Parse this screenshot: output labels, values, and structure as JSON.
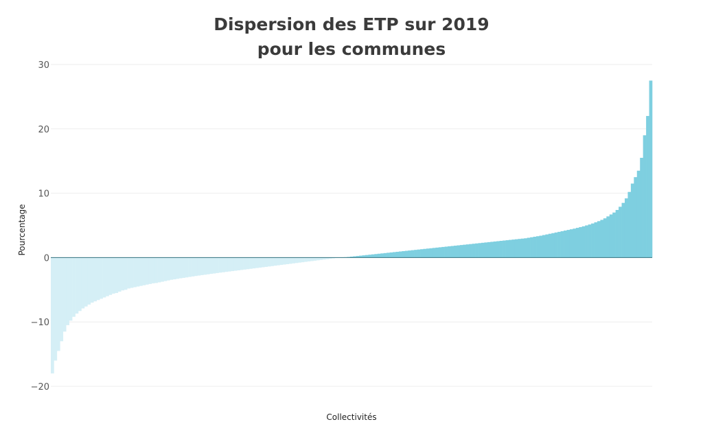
{
  "chart_data": {
    "type": "bar",
    "title_line1": "Dispersion des ETP sur 2019",
    "title_line2": "pour les communes",
    "xlabel": "Collectivités",
    "ylabel": "Pourcentage",
    "ylim": [
      -20,
      30
    ],
    "yticks": [
      {
        "value": 30,
        "label": "30"
      },
      {
        "value": 20,
        "label": "20"
      },
      {
        "value": 10,
        "label": "10"
      },
      {
        "value": 0,
        "label": "0"
      },
      {
        "value": -10,
        "label": "−10"
      },
      {
        "value": -20,
        "label": "−20"
      }
    ],
    "grid": true,
    "legend": "none",
    "colors": {
      "positive": "#7ecfe0",
      "negative": "#d5eff6",
      "zero_line": "#2f6f7c",
      "grid": "#eeeeee"
    },
    "series": [
      {
        "values": [
          -18.0,
          -16.0,
          -14.5,
          -13.0,
          -11.5,
          -10.5,
          -9.8,
          -9.2,
          -8.7,
          -8.3,
          -7.9,
          -7.6,
          -7.3,
          -7.0,
          -6.8,
          -6.6,
          -6.4,
          -6.2,
          -6.0,
          -5.8,
          -5.6,
          -5.5,
          -5.3,
          -5.1,
          -5.0,
          -4.8,
          -4.7,
          -4.6,
          -4.5,
          -4.4,
          -4.3,
          -4.2,
          -4.1,
          -4.0,
          -3.95,
          -3.85,
          -3.75,
          -3.65,
          -3.55,
          -3.45,
          -3.38,
          -3.3,
          -3.22,
          -3.15,
          -3.08,
          -3.0,
          -2.93,
          -2.86,
          -2.79,
          -2.72,
          -2.66,
          -2.6,
          -2.53,
          -2.47,
          -2.4,
          -2.34,
          -2.28,
          -2.22,
          -2.16,
          -2.1,
          -2.04,
          -1.98,
          -1.92,
          -1.86,
          -1.8,
          -1.74,
          -1.68,
          -1.62,
          -1.56,
          -1.5,
          -1.44,
          -1.38,
          -1.32,
          -1.26,
          -1.2,
          -1.14,
          -1.08,
          -1.02,
          -0.96,
          -0.9,
          -0.84,
          -0.78,
          -0.72,
          -0.66,
          -0.6,
          -0.54,
          -0.48,
          -0.42,
          -0.36,
          -0.3,
          -0.24,
          -0.18,
          -0.12,
          -0.06,
          -0.02,
          0.02,
          0.06,
          0.1,
          0.15,
          0.2,
          0.25,
          0.3,
          0.35,
          0.4,
          0.45,
          0.5,
          0.55,
          0.6,
          0.65,
          0.7,
          0.75,
          0.8,
          0.85,
          0.9,
          0.95,
          1.0,
          1.05,
          1.1,
          1.15,
          1.2,
          1.25,
          1.3,
          1.35,
          1.4,
          1.45,
          1.5,
          1.55,
          1.6,
          1.65,
          1.7,
          1.75,
          1.8,
          1.85,
          1.9,
          1.95,
          2.0,
          2.05,
          2.1,
          2.15,
          2.2,
          2.25,
          2.3,
          2.35,
          2.4,
          2.45,
          2.5,
          2.55,
          2.6,
          2.65,
          2.7,
          2.75,
          2.8,
          2.85,
          2.9,
          2.95,
          3.0,
          3.08,
          3.16,
          3.24,
          3.32,
          3.4,
          3.5,
          3.6,
          3.7,
          3.8,
          3.9,
          4.0,
          4.1,
          4.2,
          4.3,
          4.4,
          4.5,
          4.62,
          4.74,
          4.86,
          5.0,
          5.14,
          5.3,
          5.48,
          5.66,
          5.86,
          6.1,
          6.4,
          6.7,
          7.0,
          7.4,
          7.9,
          8.5,
          9.2,
          10.2,
          11.5,
          12.5,
          13.5,
          15.5,
          19.0,
          22.0,
          27.5
        ]
      }
    ]
  }
}
